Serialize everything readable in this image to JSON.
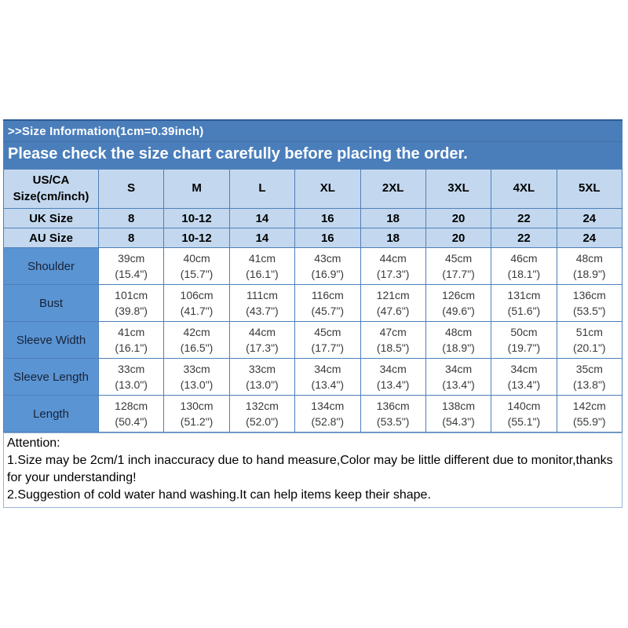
{
  "banner": {
    "line1": ">>Size Information(1cm=0.39inch)",
    "line2": "Please check the size chart carefully before placing the order.",
    "bg_color": "#4a7ebb",
    "text_color": "#ffffff"
  },
  "size_chart": {
    "header": {
      "label_line1": "US/CA",
      "label_line2": "Size(cm/inch)",
      "sizes": [
        "S",
        "M",
        "L",
        "XL",
        "2XL",
        "3XL",
        "4XL",
        "5XL"
      ]
    },
    "conversion_rows": [
      {
        "label": "UK Size",
        "values": [
          "8",
          "10-12",
          "14",
          "16",
          "18",
          "20",
          "22",
          "24"
        ]
      },
      {
        "label": "AU Size",
        "values": [
          "8",
          "10-12",
          "14",
          "16",
          "18",
          "20",
          "22",
          "24"
        ]
      }
    ],
    "measurement_rows": [
      {
        "label": "Shoulder",
        "cm": [
          "39cm",
          "40cm",
          "41cm",
          "43cm",
          "44cm",
          "45cm",
          "46cm",
          "48cm"
        ],
        "inch": [
          "(15.4\")",
          "(15.7\")",
          "(16.1\")",
          "(16.9\")",
          "(17.3\")",
          "(17.7\")",
          "(18.1\")",
          "(18.9\")"
        ]
      },
      {
        "label": "Bust",
        "cm": [
          "101cm",
          "106cm",
          "111cm",
          "116cm",
          "121cm",
          "126cm",
          "131cm",
          "136cm"
        ],
        "inch": [
          "(39.8\")",
          "(41.7\")",
          "(43.7\")",
          "(45.7\")",
          "(47.6\")",
          "(49.6\")",
          "(51.6\")",
          "(53.5\")"
        ]
      },
      {
        "label": "Sleeve Width",
        "cm": [
          "41cm",
          "42cm",
          "44cm",
          "45cm",
          "47cm",
          "48cm",
          "50cm",
          "51cm"
        ],
        "inch": [
          "(16.1\")",
          "(16.5\")",
          "(17.3\")",
          "(17.7\")",
          "(18.5\")",
          "(18.9\")",
          "(19.7\")",
          "(20.1\")"
        ]
      },
      {
        "label": "Sleeve Length",
        "cm": [
          "33cm",
          "33cm",
          "33cm",
          "34cm",
          "34cm",
          "34cm",
          "34cm",
          "35cm"
        ],
        "inch": [
          "(13.0\")",
          "(13.0\")",
          "(13.0\")",
          "(13.4\")",
          "(13.4\")",
          "(13.4\")",
          "(13.4\")",
          "(13.8\")"
        ]
      },
      {
        "label": "Length",
        "cm": [
          "128cm",
          "130cm",
          "132cm",
          "134cm",
          "136cm",
          "138cm",
          "140cm",
          "142cm"
        ],
        "inch": [
          "(50.4\")",
          "(51.2\")",
          "(52.0\")",
          "(52.8\")",
          "(53.5\")",
          "(54.3\")",
          "(55.1\")",
          "(55.9\")"
        ]
      }
    ],
    "colors": {
      "banner_bg": "#4a7ebb",
      "header_bg": "#c3d8ee",
      "label_bg": "#5b94d2",
      "border": "#4e7fba",
      "cell_bg": "#ffffff"
    }
  },
  "attention": {
    "title": "Attention:",
    "notes": [
      "1.Size may be 2cm/1 inch inaccuracy due to hand measure,Color may be little different due to monitor,thanks for your understanding!",
      "2.Suggestion of cold water hand washing.It can help items keep their shape."
    ]
  },
  "chart_data": {
    "type": "table",
    "title": ">>Size Information(1cm=0.39inch)",
    "subtitle": "Please check the size chart carefully before placing the order.",
    "columns": [
      "US/CA Size(cm/inch)",
      "S",
      "M",
      "L",
      "XL",
      "2XL",
      "3XL",
      "4XL",
      "5XL"
    ],
    "rows": [
      [
        "UK Size",
        "8",
        "10-12",
        "14",
        "16",
        "18",
        "20",
        "22",
        "24"
      ],
      [
        "AU Size",
        "8",
        "10-12",
        "14",
        "16",
        "18",
        "20",
        "22",
        "24"
      ],
      [
        "Shoulder",
        "39cm (15.4\")",
        "40cm (15.7\")",
        "41cm (16.1\")",
        "43cm (16.9\")",
        "44cm (17.3\")",
        "45cm (17.7\")",
        "46cm (18.1\")",
        "48cm (18.9\")"
      ],
      [
        "Bust",
        "101cm (39.8\")",
        "106cm (41.7\")",
        "111cm (43.7\")",
        "116cm (45.7\")",
        "121cm (47.6\")",
        "126cm (49.6\")",
        "131cm (51.6\")",
        "136cm (53.5\")"
      ],
      [
        "Sleeve Width",
        "41cm (16.1\")",
        "42cm (16.5\")",
        "44cm (17.3\")",
        "45cm (17.7\")",
        "47cm (18.5\")",
        "48cm (18.9\")",
        "50cm (19.7\")",
        "51cm (20.1\")"
      ],
      [
        "Sleeve Length",
        "33cm (13.0\")",
        "33cm (13.0\")",
        "33cm (13.0\")",
        "34cm (13.4\")",
        "34cm (13.4\")",
        "34cm (13.4\")",
        "34cm (13.4\")",
        "35cm (13.8\")"
      ],
      [
        "Length",
        "128cm (50.4\")",
        "130cm (51.2\")",
        "132cm (52.0\")",
        "134cm (52.8\")",
        "136cm (53.5\")",
        "138cm (54.3\")",
        "140cm (55.1\")",
        "142cm (55.9\")"
      ]
    ],
    "notes": [
      "Attention:",
      "1.Size may be 2cm/1 inch inaccuracy due to hand measure,Color may be little different due to monitor,thanks for your understanding!",
      "2.Suggestion of cold water hand washing.It can help items keep their shape."
    ]
  }
}
